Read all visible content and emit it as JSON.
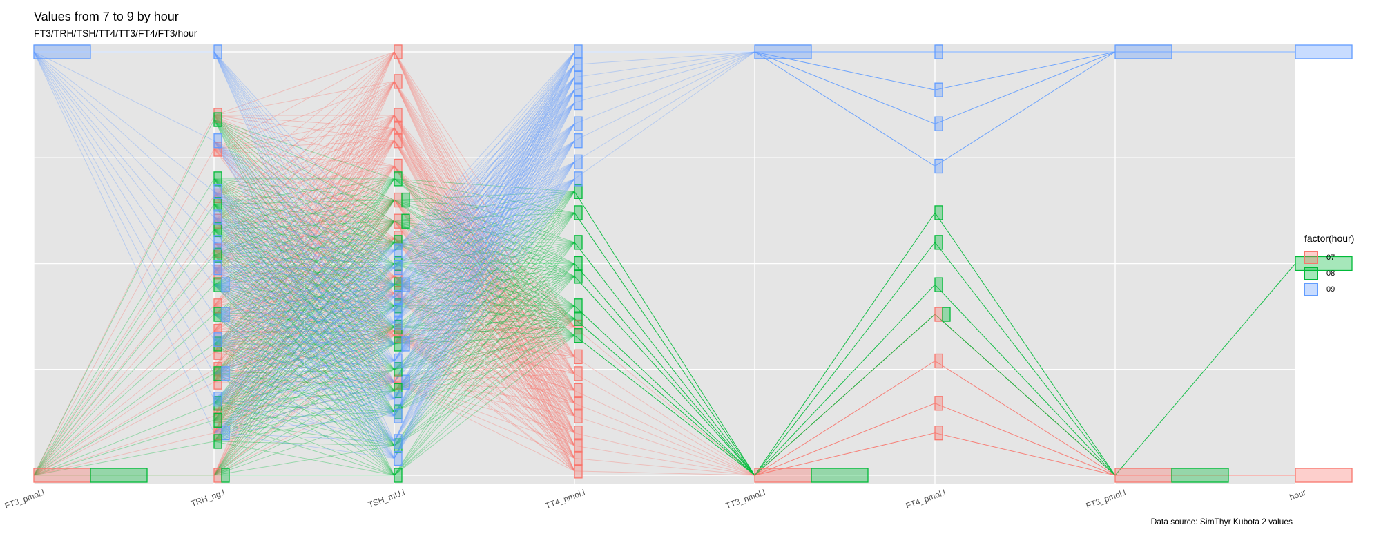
{
  "chart_data": {
    "type": "parallel-coordinates",
    "title": "Values from 7 to 9 by hour",
    "subtitle": "FT3/TRH/TSH/TT4/TT3/FT4/FT3/hour",
    "caption": "Data source: SimThyr Kubota 2 values",
    "axes": [
      "FT3_pmol.l",
      "TRH_ng.l",
      "TSH_mU.l",
      "TT4_nmol.l",
      "TT3_nmol.l",
      "FT4_pmol.l",
      "FT3_pmol.l",
      "hour"
    ],
    "scale": "each axis scaled 0 to 1 (min to max)",
    "legend": {
      "title": "factor(hour)",
      "position": "right"
    },
    "series": [
      {
        "name": "07",
        "color": "#F8766D",
        "values": {
          "FT3_pmol.l": 0.0,
          "TT3_nmol.l": 0.0,
          "FT3_pmol.l_2": 0.0,
          "hour": 0.0,
          "FT4_pmol.l": [
            0.38,
            0.27,
            0.17,
            0.1
          ],
          "TRH_ng.l": [
            0.85,
            0.77,
            0.66,
            0.6,
            0.53,
            0.48,
            0.4,
            0.34,
            0.29,
            0.25,
            0.22,
            0.14,
            0.1,
            0.0
          ],
          "TSH_mU.l": [
            1.0,
            0.93,
            0.85,
            0.82,
            0.79,
            0.73,
            0.65,
            0.6,
            0.56,
            0.47,
            0.43,
            0.34,
            0.33,
            0.22
          ],
          "TT4_nmol.l": [
            0.35,
            0.28,
            0.24,
            0.2,
            0.17,
            0.14,
            0.1,
            0.07,
            0.04,
            0.01
          ]
        }
      },
      {
        "name": "08",
        "color": "#00BA38",
        "values": {
          "FT3_pmol.l": 0.0,
          "TT3_nmol.l": 0.0,
          "FT3_pmol.l_2": 0.0,
          "hour": 0.5,
          "FT4_pmol.l": [
            0.62,
            0.55,
            0.45,
            0.38
          ],
          "TRH_ng.l": [
            0.84,
            0.7,
            0.64,
            0.58,
            0.52,
            0.45,
            0.38,
            0.31,
            0.24,
            0.17,
            0.13,
            0.08,
            0.0
          ],
          "TSH_mU.l": [
            0.7,
            0.65,
            0.6,
            0.55,
            0.5,
            0.45,
            0.4,
            0.35,
            0.31,
            0.25,
            0.2,
            0.15,
            0.07,
            0.0
          ],
          "TT4_nmol.l": [
            0.67,
            0.62,
            0.55,
            0.5,
            0.47,
            0.4,
            0.37,
            0.33
          ]
        }
      },
      {
        "name": "09",
        "color": "#619CFF",
        "values": {
          "FT3_pmol.l": 1.0,
          "TT3_nmol.l": 1.0,
          "FT3_pmol.l_2": 1.0,
          "hour": 1.0,
          "FT4_pmol.l": [
            1.0,
            0.91,
            0.83,
            0.73
          ],
          "TRH_ng.l": [
            1.0,
            0.79,
            0.67,
            0.61,
            0.55,
            0.49,
            0.45,
            0.38,
            0.32,
            0.24,
            0.18,
            0.1
          ],
          "TSH_mU.l": [
            0.53,
            0.49,
            0.45,
            0.42,
            0.39,
            0.36,
            0.31,
            0.27,
            0.22,
            0.18,
            0.14,
            0.08,
            0.04
          ],
          "TT4_nmol.l": [
            1.0,
            0.97,
            0.94,
            0.91,
            0.88,
            0.83,
            0.79,
            0.74,
            0.7
          ]
        }
      }
    ]
  }
}
